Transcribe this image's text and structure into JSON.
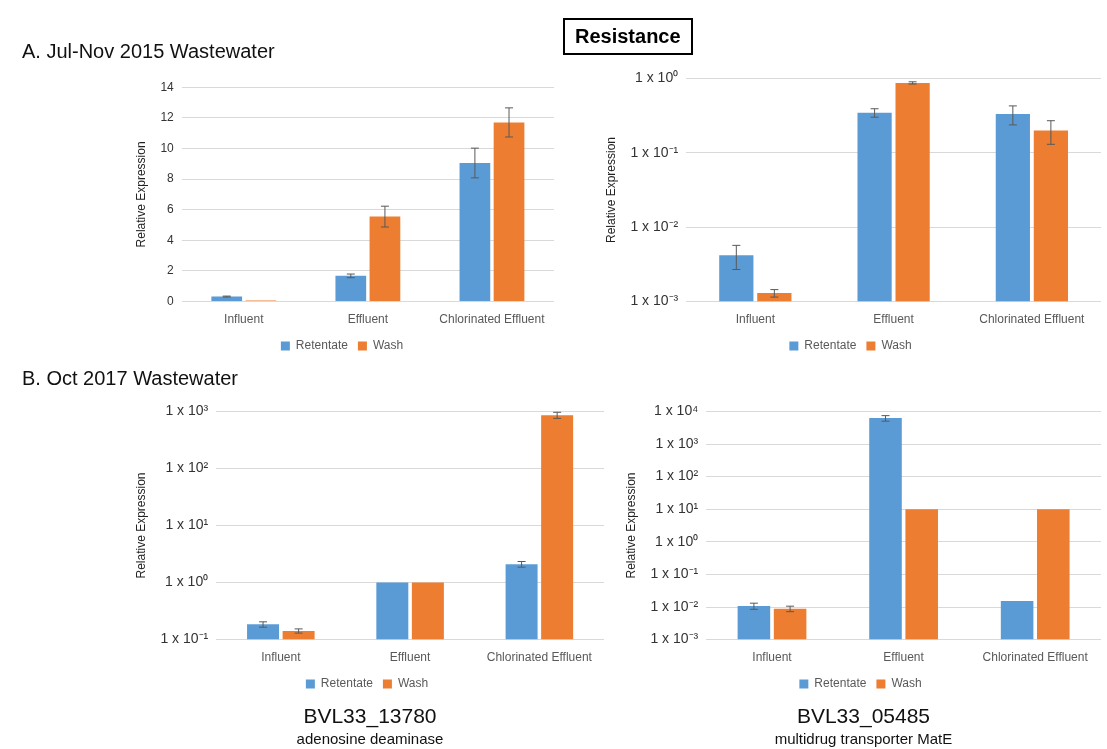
{
  "chart_data": [
    {
      "type": "bar",
      "subtitle": "A. Jul-Nov 2015 Wastewater",
      "ylabel": "Relative Expression",
      "categories": [
        "Influent",
        "Effluent",
        "Chlorinated Effluent"
      ],
      "series": [
        {
          "name": "Retentate",
          "color": "#5b9bd5",
          "values": [
            0.33,
            1.68,
            9.05
          ],
          "errors": [
            0.03,
            0.12,
            0.97
          ]
        },
        {
          "name": "Wash",
          "color": "#ed7d31",
          "values": [
            0.08,
            5.55,
            11.7
          ],
          "errors": [
            null,
            0.68,
            0.95
          ]
        }
      ],
      "ylim": [
        0,
        14
      ],
      "yticks": [
        0,
        2,
        4,
        6,
        8,
        10,
        12,
        14
      ],
      "grid": "y",
      "legend": "bottom"
    },
    {
      "type": "bar",
      "title": "Resistance",
      "ylabel": "Relative Expression",
      "categories": [
        "Influent",
        "Effluent",
        "Chlorinated Effluent"
      ],
      "series": [
        {
          "name": "Retentate",
          "color": "#5b9bd5",
          "values": [
            0.0042,
            0.346,
            0.332
          ],
          "errors": [
            0.0015,
            0.045,
            0.095
          ]
        },
        {
          "name": "Wash",
          "color": "#ed7d31",
          "values": [
            0.0013,
            0.87,
            0.2
          ],
          "errors": [
            0.00015,
            0.03,
            0.07
          ]
        }
      ],
      "log": true,
      "ylim": [
        0.001,
        1
      ],
      "yticks": [
        {
          "value": 0.001,
          "label": "1 x 10⁻³"
        },
        {
          "value": 0.01,
          "label": "1 x 10⁻²"
        },
        {
          "value": 0.1,
          "label": "1 x 10⁻¹"
        },
        {
          "value": 1,
          "label": "1 x 10⁰"
        }
      ],
      "grid": "y",
      "legend": "bottom"
    },
    {
      "type": "bar",
      "subtitle": "B. Oct 2017 Wastewater",
      "ylabel": "Relative Expression",
      "categories": [
        "Influent",
        "Effluent",
        "Chlorinated Effluent"
      ],
      "series": [
        {
          "name": "Retentate",
          "color": "#5b9bd5",
          "values": [
            0.185,
            1,
            2.1
          ],
          "errors": [
            0.02,
            null,
            0.24
          ]
        },
        {
          "name": "Wash",
          "color": "#ed7d31",
          "values": [
            0.142,
            1,
            860
          ],
          "errors": [
            0.012,
            null,
            105
          ]
        }
      ],
      "log": true,
      "ylim": [
        0.1,
        1000
      ],
      "yticks": [
        {
          "value": 0.1,
          "label": "1 x 10⁻¹"
        },
        {
          "value": 1,
          "label": "1 x 10⁰"
        },
        {
          "value": 10,
          "label": "1 x 10¹"
        },
        {
          "value": 100,
          "label": "1 x 10²"
        },
        {
          "value": 1000,
          "label": "1 x 10³"
        }
      ],
      "grid": "y",
      "legend": "bottom",
      "annotations": [
        "BVL33_13780",
        "adenosine deaminase"
      ]
    },
    {
      "type": "bar",
      "ylabel": "Relative Expression",
      "categories": [
        "Influent",
        "Effluent",
        "Chlorinated Effluent"
      ],
      "series": [
        {
          "name": "Retentate",
          "color": "#5b9bd5",
          "values": [
            0.0108,
            6220,
            0.0154
          ],
          "errors": [
            0.0023,
            1200,
            null
          ]
        },
        {
          "name": "Wash",
          "color": "#ed7d31",
          "values": [
            0.0089,
            10,
            10
          ],
          "errors": [
            0.0017,
            null,
            null
          ]
        }
      ],
      "log": true,
      "ylim": [
        0.001,
        10000
      ],
      "yticks": [
        {
          "value": 0.001,
          "label": "1 x 10⁻³"
        },
        {
          "value": 0.01,
          "label": "1 x 10⁻²"
        },
        {
          "value": 0.1,
          "label": "1 x 10⁻¹"
        },
        {
          "value": 1,
          "label": "1 x 10⁰"
        },
        {
          "value": 10,
          "label": "1 x 10¹"
        },
        {
          "value": 100,
          "label": "1 x 10²"
        },
        {
          "value": 1000,
          "label": "1 x 10³"
        },
        {
          "value": 10000,
          "label": "1 x 10⁴"
        }
      ],
      "grid": "y",
      "legend": "bottom",
      "annotations": [
        "BVL33_05485",
        "multidrug transporter MatE"
      ]
    }
  ]
}
